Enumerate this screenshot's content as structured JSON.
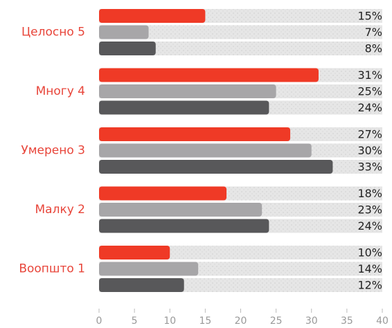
{
  "chart_data": {
    "type": "bar",
    "orientation": "horizontal",
    "categories": [
      "Целосно 5",
      "Многу 4",
      "Умерено 3",
      "Малку 2",
      "Воопшто 1"
    ],
    "series": [
      {
        "color": "#ef3a26",
        "values": [
          15,
          31,
          27,
          18,
          10
        ],
        "value_labels": [
          "15%",
          "31%",
          "27%",
          "18%",
          "10%"
        ]
      },
      {
        "color": "#a7a6a8",
        "values": [
          7,
          25,
          30,
          23,
          14
        ],
        "value_labels": [
          "7%",
          "25%",
          "30%",
          "23%",
          "14%"
        ]
      },
      {
        "color": "#58585a",
        "values": [
          8,
          24,
          33,
          24,
          12
        ],
        "value_labels": [
          "8%",
          "24%",
          "33%",
          "24%",
          "12%"
        ]
      }
    ],
    "xlim": [
      0,
      40
    ],
    "xticks": [
      0,
      5,
      10,
      15,
      20,
      25,
      30,
      35,
      40
    ],
    "track_color": "#e3e3e3"
  }
}
